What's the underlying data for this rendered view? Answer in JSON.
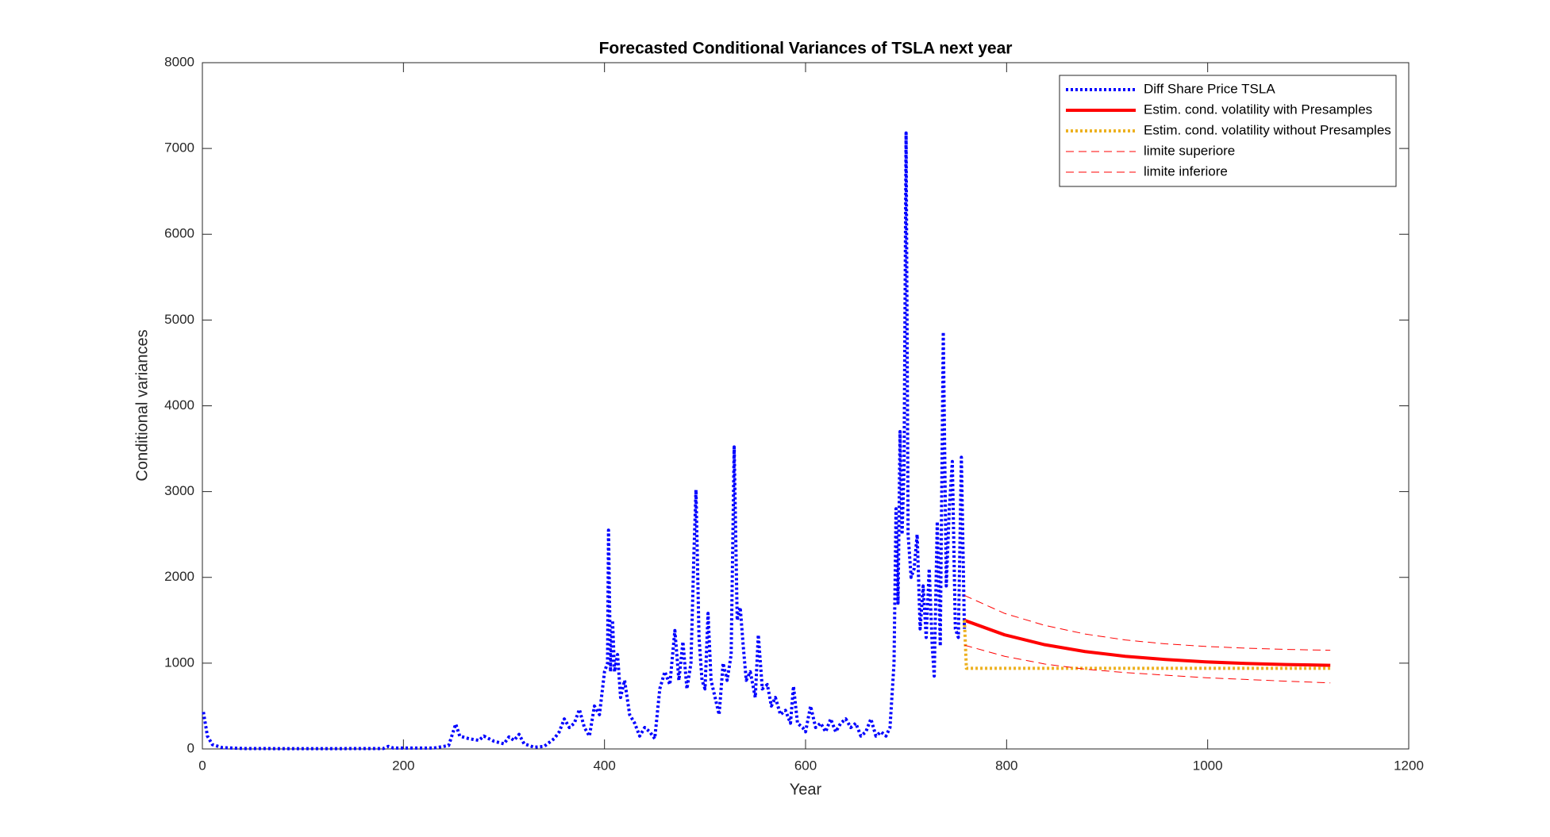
{
  "chart_data": {
    "type": "line",
    "title": "Forecasted Conditional Variances of TSLA next year",
    "xlabel": "Year",
    "ylabel": "Conditional variances",
    "xlim": [
      0,
      1200
    ],
    "ylim": [
      0,
      8000
    ],
    "xticks": [
      0,
      200,
      400,
      600,
      800,
      1000,
      1200
    ],
    "yticks": [
      0,
      1000,
      2000,
      3000,
      4000,
      5000,
      6000,
      7000,
      8000
    ],
    "grid": false,
    "legend": "northeast",
    "series": [
      {
        "name": "Diff Share Price TSLA",
        "color": "#0000ff",
        "linestyle": "dotted",
        "linewidth": 4,
        "x": [
          1,
          5,
          10,
          20,
          40,
          100,
          180,
          185,
          190,
          230,
          245,
          252,
          256,
          265,
          275,
          280,
          290,
          300,
          305,
          310,
          315,
          320,
          330,
          340,
          350,
          355,
          360,
          365,
          370,
          375,
          380,
          385,
          390,
          395,
          400,
          403,
          404,
          406,
          408,
          410,
          413,
          416,
          420,
          425,
          430,
          435,
          440,
          445,
          450,
          455,
          460,
          465,
          470,
          474,
          478,
          482,
          486,
          489,
          491,
          494,
          497,
          500,
          503,
          506,
          510,
          514,
          518,
          522,
          526,
          529,
          532,
          535,
          538,
          541,
          545,
          550,
          553,
          557,
          562,
          566,
          570,
          575,
          580,
          585,
          588,
          592,
          597,
          600,
          605,
          610,
          615,
          620,
          625,
          630,
          635,
          640,
          645,
          650,
          655,
          660,
          665,
          670,
          675,
          680,
          684,
          688,
          690,
          692,
          694,
          696,
          698,
          700,
          702,
          705,
          708,
          711,
          714,
          717,
          720,
          723,
          726,
          728,
          731,
          734,
          737,
          740,
          743,
          746,
          749,
          752,
          755,
          758
        ],
        "values": [
          430,
          150,
          50,
          15,
          5,
          3,
          5,
          30,
          10,
          10,
          40,
          290,
          150,
          120,
          100,
          150,
          90,
          60,
          140,
          100,
          170,
          60,
          20,
          30,
          120,
          200,
          350,
          250,
          300,
          460,
          250,
          150,
          500,
          400,
          900,
          1000,
          2550,
          900,
          1500,
          900,
          1100,
          600,
          800,
          400,
          300,
          150,
          250,
          200,
          120,
          700,
          900,
          750,
          1380,
          800,
          1250,
          700,
          1000,
          2300,
          3020,
          1300,
          800,
          700,
          1580,
          800,
          600,
          400,
          1000,
          800,
          1100,
          3520,
          1500,
          1650,
          1200,
          800,
          900,
          600,
          1330,
          700,
          750,
          500,
          600,
          400,
          450,
          300,
          730,
          300,
          250,
          200,
          500,
          250,
          300,
          200,
          350,
          200,
          300,
          350,
          250,
          300,
          150,
          200,
          350,
          150,
          200,
          150,
          250,
          1000,
          2800,
          1700,
          3700,
          2500,
          3300,
          7180,
          2500,
          2000,
          2100,
          2500,
          1400,
          1900,
          1300,
          2100,
          1200,
          850,
          2650,
          1200,
          4860,
          1900,
          2800,
          3350,
          1400,
          1300,
          3400,
          1400
        ]
      },
      {
        "name": "Estim. cond. volatility with Presamples",
        "color": "#ff0000",
        "linestyle": "solid",
        "linewidth": 4,
        "x": [
          758,
          798,
          838,
          878,
          918,
          958,
          998,
          1038,
          1078,
          1122
        ],
        "values": [
          1500,
          1330,
          1215,
          1135,
          1080,
          1043,
          1015,
          997,
          984,
          975
        ]
      },
      {
        "name": "Estim. cond. volatility without Presamples",
        "color": "#edb120",
        "linestyle": "dotted",
        "linewidth": 4,
        "x": [
          758,
          760,
          1122
        ],
        "values": [
          1500,
          940,
          940
        ]
      },
      {
        "name": "limite superiore",
        "color": "#ff0000",
        "linestyle": "dashed",
        "linewidth": 1,
        "x": [
          758,
          798,
          838,
          878,
          918,
          958,
          998,
          1038,
          1078,
          1122
        ],
        "values": [
          1790,
          1580,
          1440,
          1340,
          1270,
          1225,
          1195,
          1175,
          1160,
          1150
        ]
      },
      {
        "name": "limite inferiore",
        "color": "#ff0000",
        "linestyle": "dashed",
        "linewidth": 1,
        "x": [
          758,
          798,
          838,
          878,
          918,
          958,
          998,
          1038,
          1078,
          1122
        ],
        "values": [
          1210,
          1080,
          990,
          930,
          890,
          860,
          830,
          810,
          790,
          770
        ]
      }
    ]
  }
}
